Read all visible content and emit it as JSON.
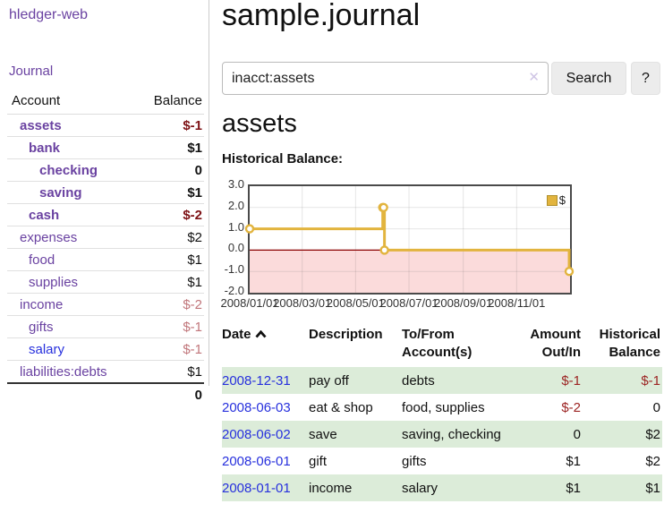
{
  "colors": {
    "link_purple": "#6a42a1",
    "link_blue": "#2730dd",
    "neg_dark": "#7d1115",
    "neg_light": "#c1767b",
    "neg_table": "#9c2423",
    "row_green": "#dcecd9",
    "chart_line": "#e2b43e",
    "chart_neg_fill": "#fbdbdb",
    "chart_zero_line": "#8b0000",
    "button_bg": "#ececec"
  },
  "sidebar": {
    "app_title": "hledger-web",
    "journal_label": "Journal",
    "accounts_header": {
      "account": "Account",
      "balance": "Balance"
    },
    "accounts": [
      {
        "name": "assets",
        "balance": "$-1",
        "level": 1,
        "bold": true,
        "balance_class": "neg-dark",
        "link_color": "purple"
      },
      {
        "name": "bank",
        "balance": "$1",
        "level": 2,
        "bold": true,
        "balance_class": "",
        "link_color": "purple"
      },
      {
        "name": "checking",
        "balance": "0",
        "level": 3,
        "bold": true,
        "balance_class": "",
        "link_color": "purple"
      },
      {
        "name": "saving",
        "balance": "$1",
        "level": 3,
        "bold": true,
        "balance_class": "",
        "link_color": "purple"
      },
      {
        "name": "cash",
        "balance": "$-2",
        "level": 2,
        "bold": true,
        "balance_class": "neg-dark",
        "link_color": "purple"
      },
      {
        "name": "expenses",
        "balance": "$2",
        "level": 1,
        "bold": false,
        "balance_class": "",
        "link_color": "purple"
      },
      {
        "name": "food",
        "balance": "$1",
        "level": 2,
        "bold": false,
        "balance_class": "",
        "link_color": "purple"
      },
      {
        "name": "supplies",
        "balance": "$1",
        "level": 2,
        "bold": false,
        "balance_class": "",
        "link_color": "purple"
      },
      {
        "name": "income",
        "balance": "$-2",
        "level": 1,
        "bold": false,
        "balance_class": "neg-light",
        "link_color": "purple"
      },
      {
        "name": "gifts",
        "balance": "$-1",
        "level": 2,
        "bold": false,
        "balance_class": "neg-light",
        "link_color": "purple"
      },
      {
        "name": "salary",
        "balance": "$-1",
        "level": 2,
        "bold": false,
        "balance_class": "neg-light",
        "link_color": "blue"
      },
      {
        "name": "liabilities:debts",
        "balance": "$1",
        "level": 1,
        "bold": false,
        "balance_class": "",
        "link_color": "purple"
      }
    ],
    "total": "0"
  },
  "main": {
    "title": "sample.journal",
    "search": {
      "value": "inacct:assets",
      "clear_icon": "✕",
      "search_button": "Search",
      "help_button": "?"
    },
    "account_heading": "assets",
    "chart_label": "Historical Balance:"
  },
  "chart_data": {
    "type": "line",
    "step": true,
    "title": "Historical Balance of assets",
    "series": [
      {
        "name": "$",
        "points": [
          [
            "2008-01-01",
            1
          ],
          [
            "2008-06-01",
            2
          ],
          [
            "2008-06-02",
            2
          ],
          [
            "2008-06-03",
            0
          ],
          [
            "2008-12-31",
            -1
          ]
        ]
      }
    ],
    "x_range": [
      "2008-01-01",
      "2009-01-01"
    ],
    "ylim": [
      -2,
      3
    ],
    "yticks": [
      "3.0",
      "2.0",
      "1.0",
      "0.0",
      "-1.0",
      "-2.0"
    ],
    "xticks": [
      "2008/01/01",
      "2008/03/01",
      "2008/05/01",
      "2008/07/01",
      "2008/09/01",
      "2008/11/01"
    ],
    "legend": {
      "label": "$",
      "position": "top-right"
    },
    "grid": true,
    "negative_region_shaded": true
  },
  "register": {
    "headers": {
      "date": "Date",
      "description": "Description",
      "tofrom": "To/From\nAccount(s)",
      "amount": "Amount\nOut/In",
      "balance": "Historical\nBalance"
    },
    "sort_icon": "chevron-up",
    "rows": [
      {
        "date": "2008-12-31",
        "description": "pay off",
        "accounts": "debts",
        "amount": "$-1",
        "balance": "$-1",
        "amount_neg": true,
        "balance_neg": true
      },
      {
        "date": "2008-06-03",
        "description": "eat & shop",
        "accounts": "food, supplies",
        "amount": "$-2",
        "balance": "0",
        "amount_neg": true,
        "balance_neg": false
      },
      {
        "date": "2008-06-02",
        "description": "save",
        "accounts": "saving, checking",
        "amount": "0",
        "balance": "$2",
        "amount_neg": false,
        "balance_neg": false
      },
      {
        "date": "2008-06-01",
        "description": "gift",
        "accounts": "gifts",
        "amount": "$1",
        "balance": "$2",
        "amount_neg": false,
        "balance_neg": false
      },
      {
        "date": "2008-01-01",
        "description": "income",
        "accounts": "salary",
        "amount": "$1",
        "balance": "$1",
        "amount_neg": false,
        "balance_neg": false
      }
    ]
  }
}
